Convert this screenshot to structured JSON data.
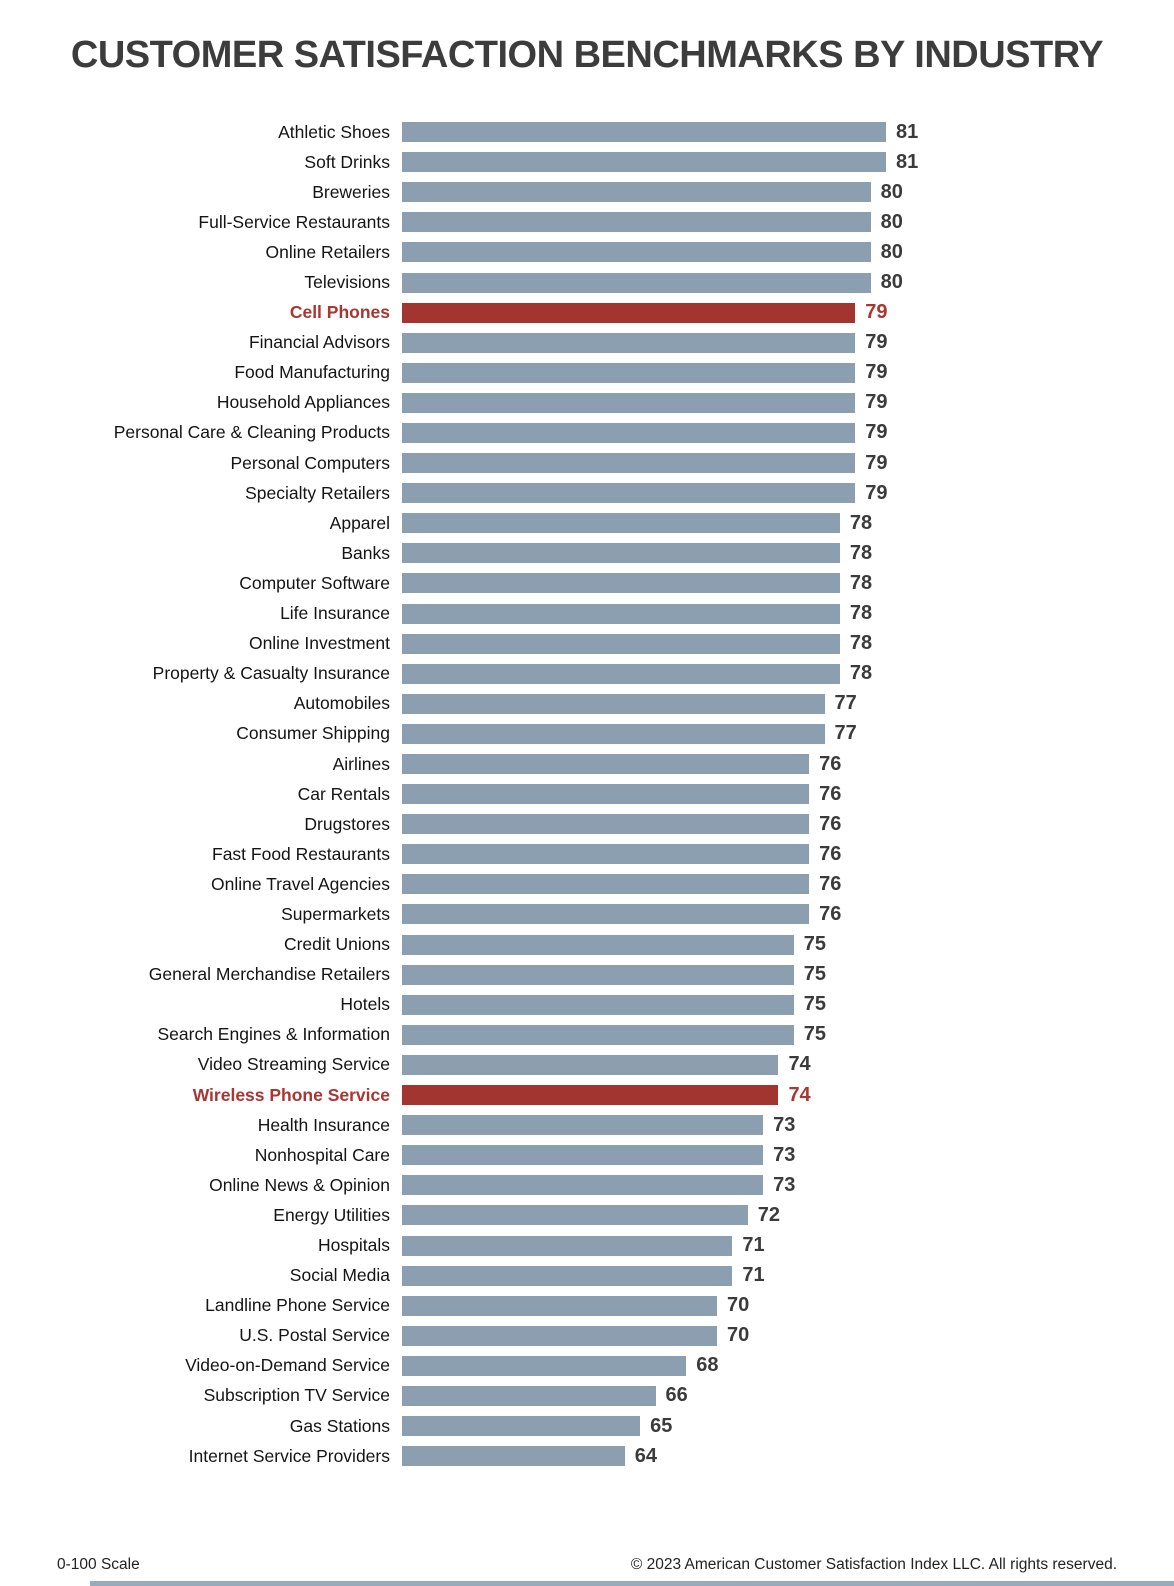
{
  "title": "CUSTOMER SATISFACTION BENCHMARKS BY INDUSTRY",
  "footer": {
    "scale_note": "0-100 Scale",
    "copyright": "© 2023 American Customer Satisfaction Index LLC. All rights reserved."
  },
  "colors": {
    "bar": "#8c9fb1",
    "highlight_bar": "#a33530",
    "highlight_text": "#a93631",
    "value_text": "#3b3b3b",
    "label_text": "#141414",
    "title_text": "#3c3c3c",
    "bottom_stripe": "#97abbc"
  },
  "chart_data": {
    "type": "bar",
    "orientation": "horizontal",
    "title": "CUSTOMER SATISFACTION BENCHMARKS BY INDUSTRY",
    "xlabel": "",
    "ylabel": "",
    "scale": "0-100 Scale",
    "axis_min_effective": 49.5,
    "axis_max_effective": 81,
    "grid": false,
    "legend": false,
    "value_labels": "end-of-bar",
    "categories": [
      "Athletic Shoes",
      "Soft Drinks",
      "Breweries",
      "Full-Service Restaurants",
      "Online Retailers",
      "Televisions",
      "Cell Phones",
      "Financial Advisors",
      "Food Manufacturing",
      "Household Appliances",
      "Personal Care & Cleaning Products",
      "Personal Computers",
      "Specialty Retailers",
      "Apparel",
      "Banks",
      "Computer Software",
      "Life Insurance",
      "Online Investment",
      "Property & Casualty Insurance",
      "Automobiles",
      "Consumer Shipping",
      "Airlines",
      "Car Rentals",
      "Drugstores",
      "Fast Food Restaurants",
      "Online Travel Agencies",
      "Supermarkets",
      "Credit Unions",
      "General Merchandise Retailers",
      "Hotels",
      "Search Engines & Information",
      "Video Streaming Service",
      "Wireless Phone Service",
      "Health Insurance",
      "Nonhospital Care",
      "Online News & Opinion",
      "Energy Utilities",
      "Hospitals",
      "Social Media",
      "Landline Phone Service",
      "U.S. Postal Service",
      "Video-on-Demand Service",
      "Subscription TV Service",
      "Gas Stations",
      "Internet Service Providers"
    ],
    "values": [
      81,
      81,
      80,
      80,
      80,
      80,
      79,
      79,
      79,
      79,
      79,
      79,
      79,
      78,
      78,
      78,
      78,
      78,
      78,
      77,
      77,
      76,
      76,
      76,
      76,
      76,
      76,
      75,
      75,
      75,
      75,
      74,
      74,
      73,
      73,
      73,
      72,
      71,
      71,
      70,
      70,
      68,
      66,
      65,
      64
    ],
    "highlight_indices": [
      6,
      32
    ],
    "highlighted_categories": [
      "Cell Phones",
      "Wireless Phone Service"
    ]
  }
}
